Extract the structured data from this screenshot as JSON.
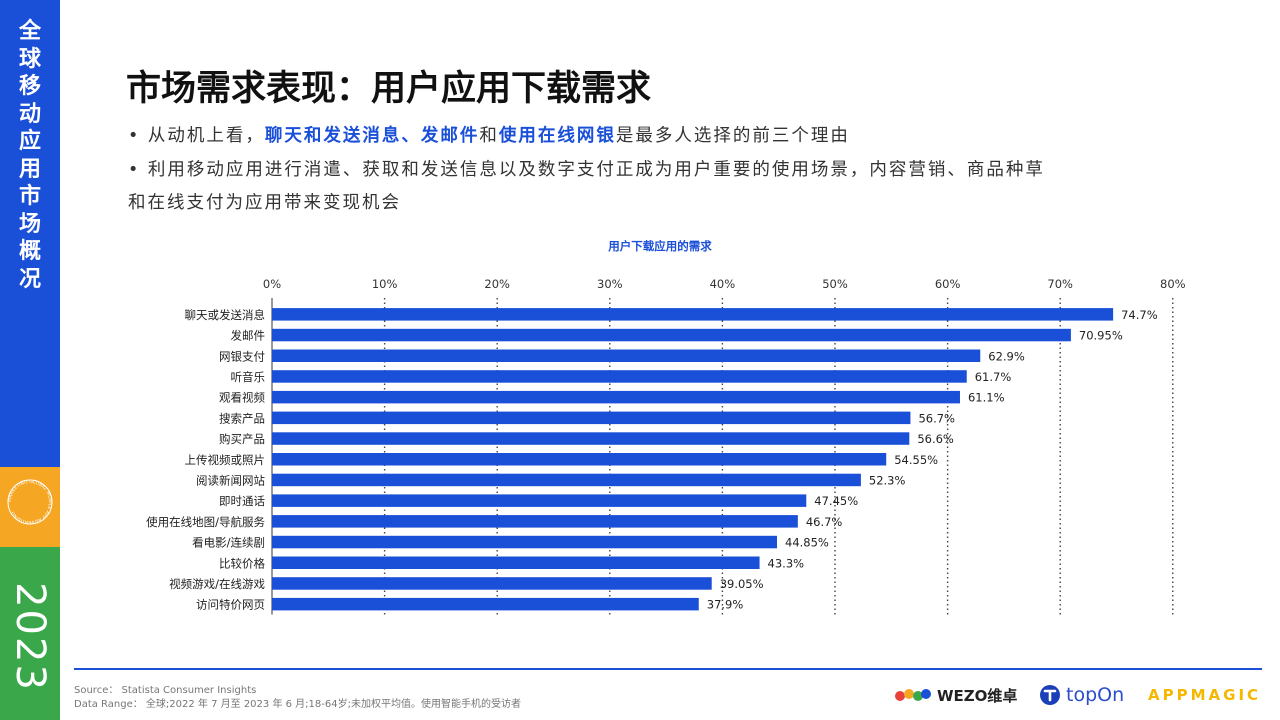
{
  "sidebar": {
    "title_chars": [
      "全",
      "球",
      "移",
      "动",
      "应",
      "用",
      "市",
      "场",
      "概",
      "况"
    ],
    "badge_text": "MARKETING GLOBAL MOBILE APP ADVERTISING",
    "year": "2023",
    "colors": {
      "blue": "#1a4fd8",
      "orange": "#f5a623",
      "green": "#3aa84a"
    }
  },
  "page": {
    "title": "市场需求表现：用户应用下载需求",
    "bullet1": {
      "prefix": "• 从动机上看，",
      "hl1": "聊天和发送消息、发邮件",
      "mid": "和",
      "hl2": "使用在线网银",
      "suffix": "是最多人选择的前三个理由"
    },
    "bullet2_line1": "• 利用移动应用进行消遣、获取和发送信息以及数字支付正成为用户重要的使用场景，内容营销、商品种草",
    "bullet2_line2": "和在线支付为应用带来变现机会"
  },
  "chart_data": {
    "type": "bar",
    "orientation": "horizontal",
    "title": "用户下载应用的需求",
    "categories": [
      "聊天或发送消息",
      "发邮件",
      "网银支付",
      "听音乐",
      "观看视频",
      "搜索产品",
      "购买产品",
      "上传视频或照片",
      "阅读新闻网站",
      "即时通话",
      "使用在线地图/导航服务",
      "看电影/连续剧",
      "比较价格",
      "视频游戏/在线游戏",
      "访问特价网页"
    ],
    "values": [
      74.7,
      70.95,
      62.9,
      61.7,
      61.1,
      56.7,
      56.6,
      54.55,
      52.3,
      47.45,
      46.7,
      44.85,
      43.3,
      39.05,
      37.9
    ],
    "value_labels": [
      "74.7%",
      "70.95%",
      "62.9%",
      "61.7%",
      "61.1%",
      "56.7%",
      "56.6%",
      "54.55%",
      "52.3%",
      "47.45%",
      "46.7%",
      "44.85%",
      "43.3%",
      "39.05%",
      "37.9%"
    ],
    "x_ticks": [
      "0%",
      "10%",
      "20%",
      "30%",
      "40%",
      "50%",
      "60%",
      "70%",
      "80%"
    ],
    "xlim": [
      0,
      80
    ],
    "grid": "vertical dotted",
    "axis_position": "top",
    "bar_color": "#1a4fd8"
  },
  "footer": {
    "source": "Source： Statista Consumer Insights",
    "data_range": "Data Range： 全球;2022 年 7 月至 2023 年 6 月;18-64岁;未加权平均值。使用智能手机的受访者",
    "logos": {
      "wezo": "WEZO维卓",
      "topon": "topOn",
      "appmagic": "APPMAGIC"
    }
  }
}
